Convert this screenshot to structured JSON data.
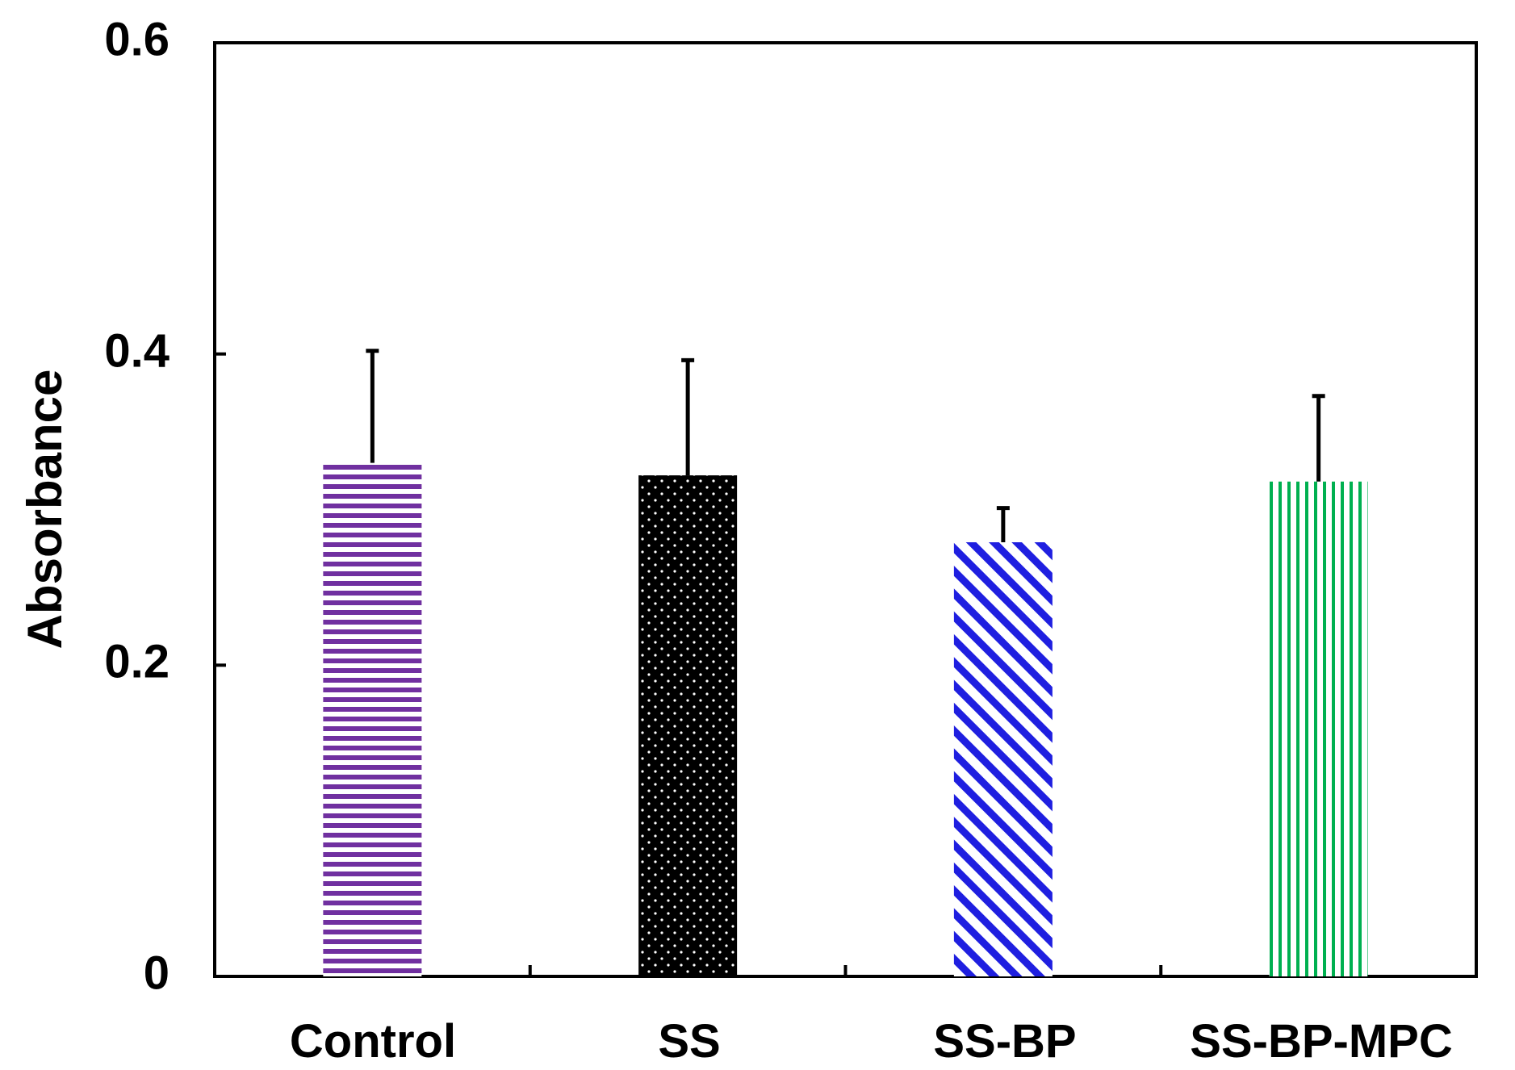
{
  "chart_data": {
    "type": "bar",
    "title": "",
    "xlabel": "",
    "ylabel": "Absorbance",
    "ylim": [
      0,
      0.6
    ],
    "yticks": [
      "0",
      "0.2",
      "0.4",
      "0.6"
    ],
    "grid": false,
    "legend": "none",
    "categories": [
      "Control",
      "SS",
      "SS-BP",
      "SS-BP-MPC"
    ],
    "values": [
      0.33,
      0.322,
      0.279,
      0.318
    ],
    "errors": [
      0.072,
      0.074,
      0.022,
      0.055
    ],
    "colors": [
      "#7030a0",
      "#000000",
      "#1f1fe0",
      "#00b050"
    ],
    "patterns": [
      "horizontal-lines",
      "dots",
      "diagonal-lines",
      "vertical-lines"
    ]
  }
}
